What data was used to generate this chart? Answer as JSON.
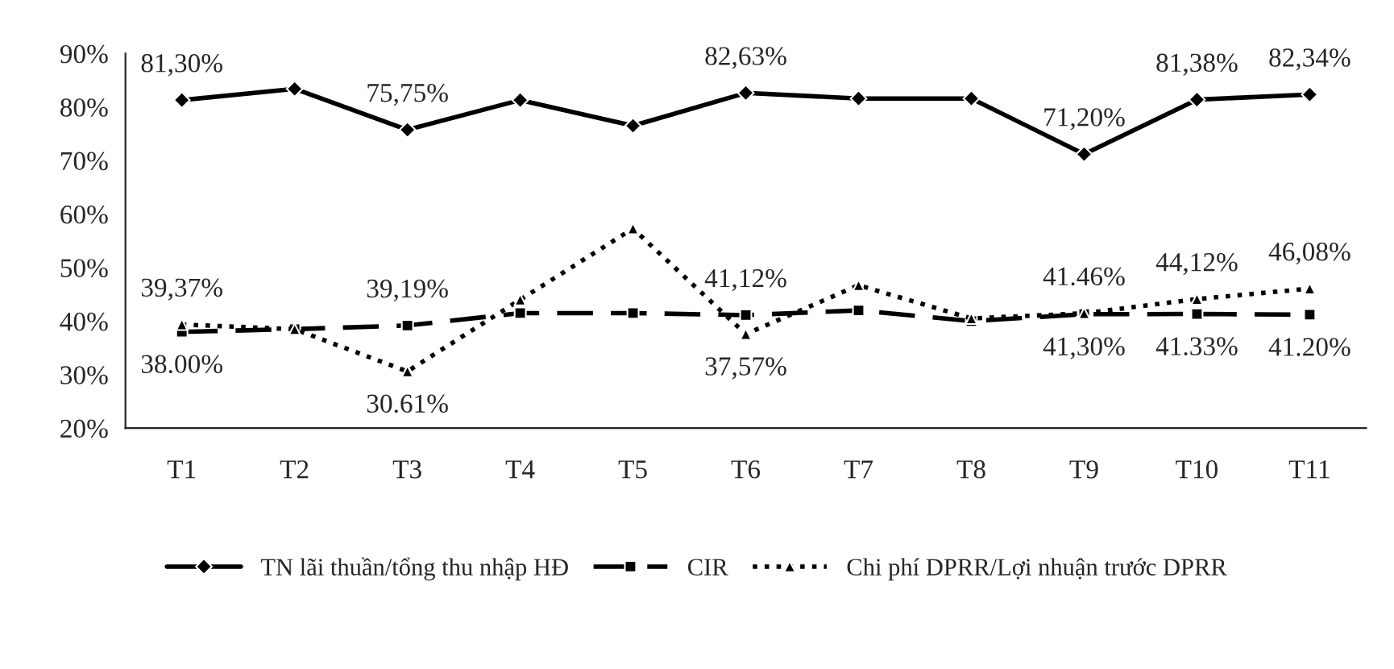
{
  "chart_data": {
    "type": "line",
    "categories": [
      "T1",
      "T2",
      "T3",
      "T4",
      "T5",
      "T6",
      "T7",
      "T8",
      "T9",
      "T10",
      "T11"
    ],
    "series": [
      {
        "name": "TN lãi thuần/tổng thu nhập HĐ",
        "color": "#000000",
        "line_style": "solid",
        "marker": "diamond",
        "values": [
          81.3,
          83.4,
          75.75,
          81.3,
          76.5,
          82.63,
          81.6,
          81.6,
          71.2,
          81.38,
          82.34
        ],
        "value_labels": [
          "81,30%",
          null,
          "75,75%",
          null,
          null,
          "82,63%",
          null,
          null,
          "71,20%",
          "81,38%",
          "82,34%"
        ]
      },
      {
        "name": "CIR",
        "color": "#000000",
        "line_style": "dashed",
        "marker": "square",
        "values": [
          38.0,
          38.5,
          39.19,
          41.5,
          41.5,
          41.12,
          42.0,
          40.0,
          41.3,
          41.33,
          41.2
        ],
        "value_labels": [
          "38.00%",
          null,
          "39,19%",
          null,
          null,
          "41,12%",
          null,
          null,
          "41,30%",
          "41.33%",
          "41.20%"
        ]
      },
      {
        "name": "Chi phí DPRR/Lợi nhuận trước DPRR",
        "color": "#000000",
        "line_style": "dotted",
        "marker": "triangle",
        "values": [
          39.37,
          38.5,
          30.61,
          44.0,
          57.3,
          37.57,
          46.7,
          40.5,
          41.46,
          44.12,
          46.08
        ],
        "value_labels": [
          "39,37%",
          null,
          "30.61%",
          null,
          null,
          "37,57%",
          null,
          null,
          "41.46%",
          "44,12%",
          "46,08%"
        ]
      }
    ],
    "ylim": [
      20,
      90
    ],
    "yticks": [
      {
        "value": 20,
        "label": "20%"
      },
      {
        "value": 30,
        "label": "30%"
      },
      {
        "value": 40,
        "label": "40%"
      },
      {
        "value": 50,
        "label": "50%"
      },
      {
        "value": 60,
        "label": "60%"
      },
      {
        "value": 70,
        "label": "70%"
      },
      {
        "value": 80,
        "label": "80%"
      },
      {
        "value": 90,
        "label": "90%"
      }
    ],
    "grid": false,
    "legend": "bottom"
  }
}
